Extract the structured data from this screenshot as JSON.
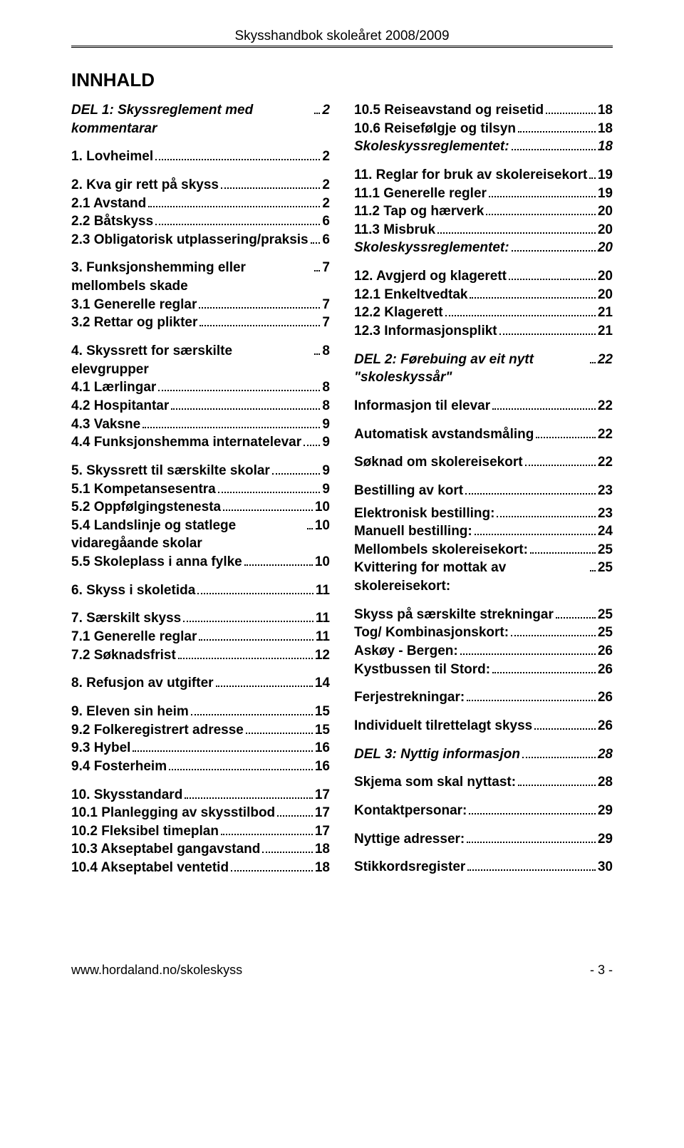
{
  "header": {
    "title": "Skysshandbok skoleåret 2008/2009"
  },
  "title": "INNHALD",
  "footer": {
    "url": "www.hordaland.no/skoleskyss",
    "page": "- 3 -"
  },
  "left": [
    {
      "label": "DEL 1: Skyssreglement med kommentarar",
      "page": "2",
      "bold": true,
      "italic": true,
      "gap": "md"
    },
    {
      "label": "1.   Lovheimel",
      "page": "2",
      "bold": true,
      "gap": "md"
    },
    {
      "label": "2.   Kva gir rett på skyss",
      "page": "2",
      "bold": true
    },
    {
      "label": "2.1 Avstand",
      "page": "2",
      "bold": true
    },
    {
      "label": "2.2 Båtskyss",
      "page": "6",
      "bold": true
    },
    {
      "label": "2.3 Obligatorisk utplassering/praksis",
      "page": "6",
      "bold": true,
      "gap": "md"
    },
    {
      "label": "3. Funksjonshemming eller mellombels skade",
      "page": "7",
      "bold": true
    },
    {
      "label": "3.1 Generelle reglar",
      "page": "7",
      "bold": true
    },
    {
      "label": "3.2 Rettar og plikter",
      "page": "7",
      "bold": true,
      "gap": "md"
    },
    {
      "label": "4. Skyssrett for særskilte elevgrupper",
      "page": "8",
      "bold": true
    },
    {
      "label": "4.1 Lærlingar",
      "page": "8",
      "bold": true
    },
    {
      "label": "4.2 Hospitantar",
      "page": "8",
      "bold": true
    },
    {
      "label": "4.3 Vaksne",
      "page": "9",
      "bold": true
    },
    {
      "label": "4.4 Funksjonshemma internatelevar",
      "page": "9",
      "bold": true,
      "gap": "md"
    },
    {
      "label": "5. Skyssrett til særskilte skolar",
      "page": "9",
      "bold": true
    },
    {
      "label": "5.1 Kompetansesentra",
      "page": "9",
      "bold": true
    },
    {
      "label": "5.2 Oppfølgingstenesta",
      "page": "10",
      "bold": true
    },
    {
      "label": "5.4 Landslinje og statlege vidaregåande skolar",
      "page": "10",
      "bold": true
    },
    {
      "label": "5.5 Skoleplass i anna fylke",
      "page": "10",
      "bold": true,
      "gap": "md"
    },
    {
      "label": "6. Skyss i skoletida",
      "page": "11",
      "bold": true,
      "gap": "md"
    },
    {
      "label": "7. Særskilt skyss",
      "page": "11",
      "bold": true
    },
    {
      "label": "7.1 Generelle reglar",
      "page": "11",
      "bold": true
    },
    {
      "label": "7.2 Søknadsfrist",
      "page": "12",
      "bold": true,
      "gap": "md"
    },
    {
      "label": "8. Refusjon av utgifter",
      "page": "14",
      "bold": true,
      "gap": "md"
    },
    {
      "label": "9. Eleven sin heim",
      "page": "15",
      "bold": true
    },
    {
      "label": "9.2 Folkeregistrert adresse",
      "page": "15",
      "bold": true
    },
    {
      "label": "9.3 Hybel",
      "page": "16",
      "bold": true
    },
    {
      "label": "9.4 Fosterheim",
      "page": "16",
      "bold": true,
      "gap": "md"
    },
    {
      "label": "10. Skysstandard",
      "page": "17",
      "bold": true
    },
    {
      "label": "10.1 Planlegging av skysstilbod",
      "page": "17",
      "bold": true
    },
    {
      "label": "10.2 Fleksibel timeplan",
      "page": "17",
      "bold": true
    },
    {
      "label": "10.3 Akseptabel gangavstand",
      "page": "18",
      "bold": true
    },
    {
      "label": "10.4 Akseptabel ventetid",
      "page": "18",
      "bold": true
    }
  ],
  "right": [
    {
      "label": "10.5 Reiseavstand og reisetid",
      "page": "18",
      "bold": true
    },
    {
      "label": "10.6 Reisefølgje og tilsyn",
      "page": "18",
      "bold": true
    },
    {
      "label": "Skoleskyssreglementet:",
      "page": "18",
      "bold": true,
      "italic": true,
      "gap": "md"
    },
    {
      "label": "11. Reglar for bruk av skolereisekort",
      "page": "19",
      "bold": true
    },
    {
      "label": "11.1 Generelle regler",
      "page": "19",
      "bold": true
    },
    {
      "label": "11.2 Tap og hærverk",
      "page": "20",
      "bold": true
    },
    {
      "label": "11.3 Misbruk",
      "page": "20",
      "bold": true
    },
    {
      "label": "Skoleskyssreglementet:",
      "page": "20",
      "bold": true,
      "italic": true,
      "gap": "md"
    },
    {
      "label": "12. Avgjerd og klagerett",
      "page": "20",
      "bold": true
    },
    {
      "label": "12.1 Enkeltvedtak",
      "page": "20",
      "bold": true
    },
    {
      "label": "12.2 Klagerett",
      "page": "21",
      "bold": true
    },
    {
      "label": "12.3 Informasjonsplikt",
      "page": "21",
      "bold": true,
      "gap": "md"
    },
    {
      "label": "DEL 2: Førebuing av eit nytt \"skoleskyssår\"",
      "page": "22",
      "bold": true,
      "italic": true,
      "gap": "md"
    },
    {
      "label": "Informasjon til elevar",
      "page": "22",
      "bold": true,
      "gap": "md"
    },
    {
      "label": "Automatisk avstandsmåling",
      "page": "22",
      "bold": true,
      "gap": "md"
    },
    {
      "label": "Søknad om skolereisekort",
      "page": "22",
      "bold": true,
      "gap": "md"
    },
    {
      "label": "Bestilling av kort",
      "page": "23",
      "bold": true,
      "gap": "sm"
    },
    {
      "label": "Elektronisk bestilling:",
      "page": "23",
      "bold": true
    },
    {
      "label": "Manuell bestilling:",
      "page": "24",
      "bold": true
    },
    {
      "label": "Mellombels skolereisekort:",
      "page": "25",
      "bold": true
    },
    {
      "label": "Kvittering for mottak av skolereisekort:",
      "page": "25",
      "bold": true,
      "gap": "md"
    },
    {
      "label": "Skyss på særskilte strekningar",
      "page": "25",
      "bold": true
    },
    {
      "label": "Tog/ Kombinasjonskort:",
      "page": "25",
      "bold": true
    },
    {
      "label": "Askøy -  Bergen:",
      "page": "26",
      "bold": true
    },
    {
      "label": "Kystbussen til Stord:",
      "page": "26",
      "bold": true,
      "gap": "md"
    },
    {
      "label": "Ferjestrekningar:",
      "page": "26",
      "bold": true,
      "gap": "md"
    },
    {
      "label": "Individuelt tilrettelagt skyss",
      "page": "26",
      "bold": true,
      "gap": "md"
    },
    {
      "label": "DEL 3: Nyttig informasjon",
      "page": "28",
      "bold": true,
      "italic": true,
      "gap": "md"
    },
    {
      "label": "Skjema som skal nyttast:",
      "page": "28",
      "bold": true,
      "gap": "md"
    },
    {
      "label": "Kontaktpersonar:",
      "page": "29",
      "bold": true,
      "gap": "md"
    },
    {
      "label": "Nyttige adresser:",
      "page": "29",
      "bold": true,
      "gap": "md"
    },
    {
      "label": "Stikkordsregister",
      "page": "30",
      "bold": true
    }
  ]
}
